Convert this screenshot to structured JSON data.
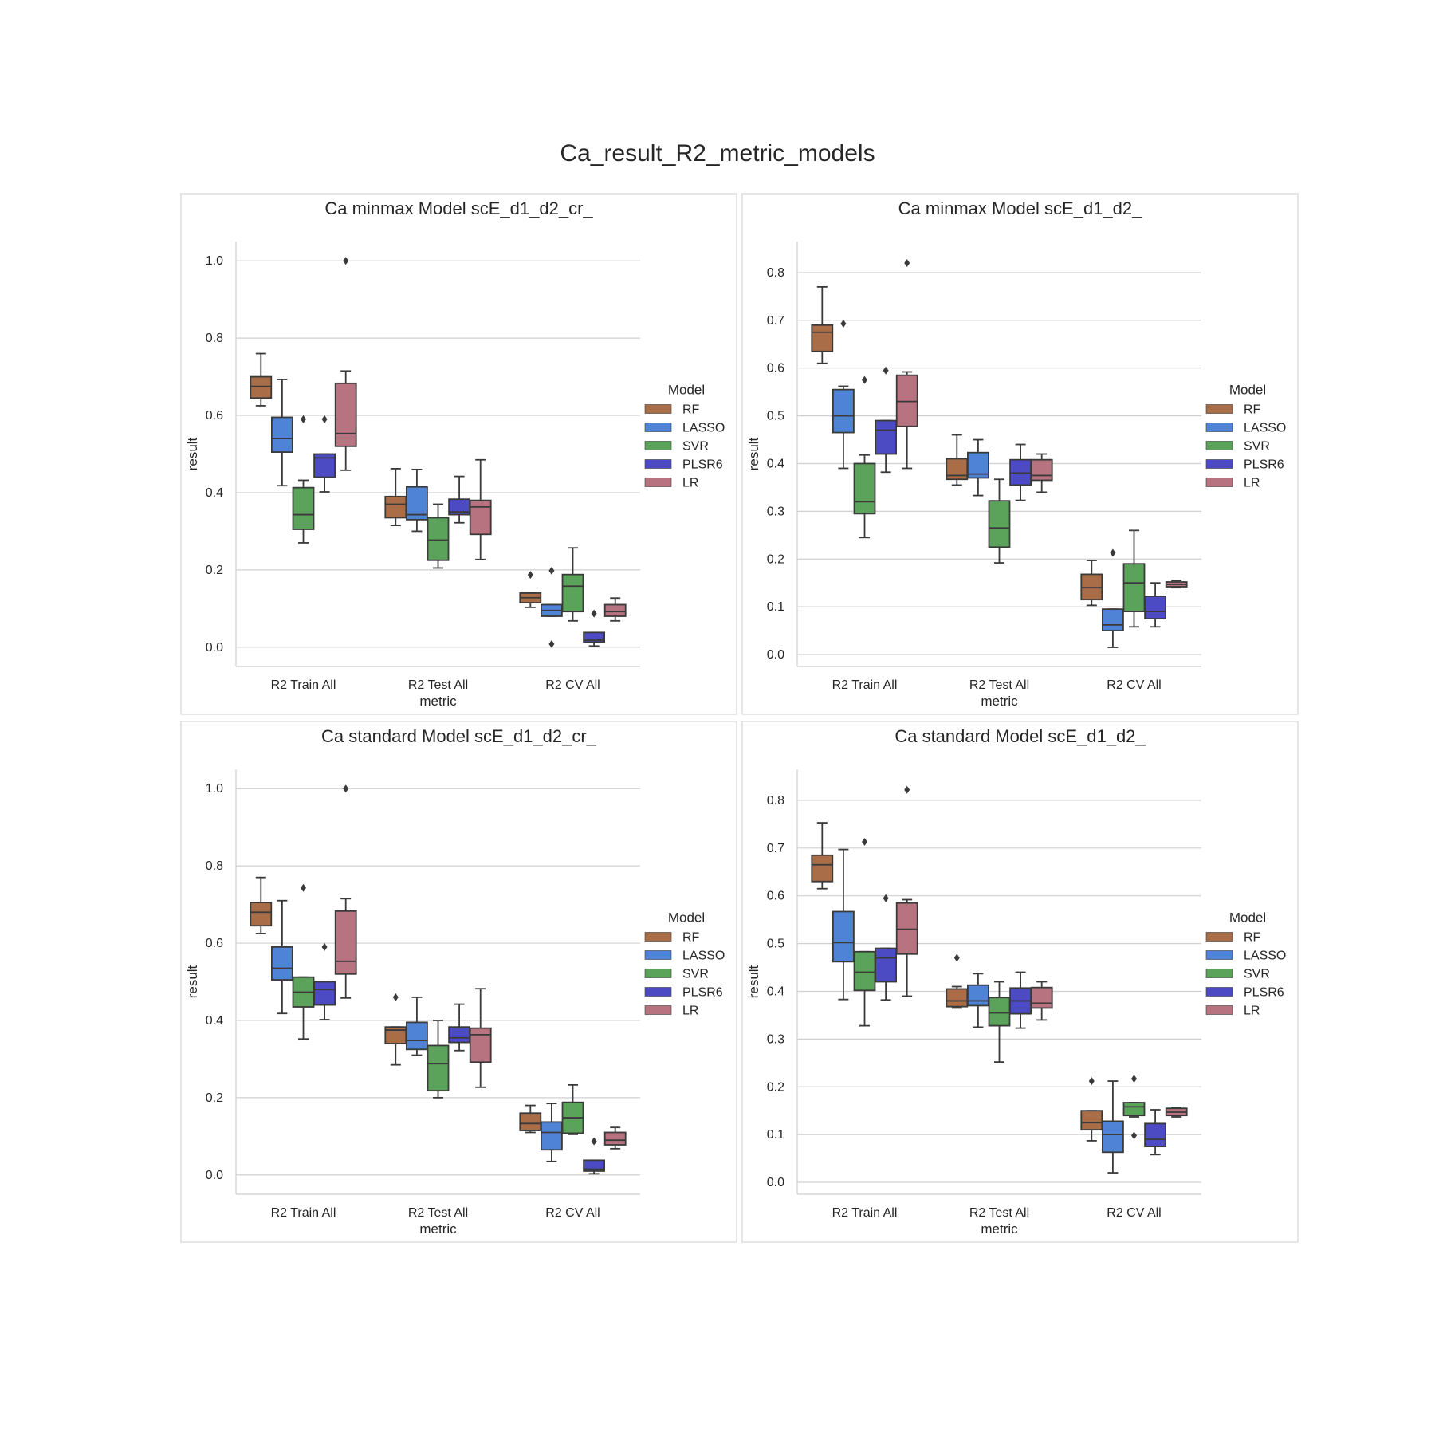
{
  "figure": {
    "title": "Ca_result_R2_metric_models"
  },
  "colors": {
    "RF": "#a96e48",
    "LASSO": "#4f83d6",
    "SVR": "#5ba25b",
    "PLSR6": "#4c4bc4",
    "LR": "#b7737f",
    "edge": "#3a3a3a",
    "grid": "#d0d0d0",
    "frame": "#d6d6d6"
  },
  "chart_data": [
    {
      "type": "box",
      "title": "Ca minmax Model scE_d1_d2_cr_",
      "xlabel": "metric",
      "ylabel": "result",
      "ylim": [
        -0.05,
        1.05
      ],
      "yticks": [
        "0.0",
        "0.2",
        "0.4",
        "0.6",
        "0.8",
        "1.0"
      ],
      "categories": [
        "R2 Train All",
        "R2 Test All",
        "R2 CV All"
      ],
      "legend": {
        "title": "Model",
        "placement": "center-right"
      },
      "grid": true,
      "series": [
        {
          "name": "RF",
          "boxes": [
            {
              "whislo": 0.625,
              "q1": 0.645,
              "med": 0.675,
              "q3": 0.7,
              "whishi": 0.76,
              "fliers": []
            },
            {
              "whislo": 0.315,
              "q1": 0.335,
              "med": 0.37,
              "q3": 0.39,
              "whishi": 0.462,
              "fliers": []
            },
            {
              "whislo": 0.103,
              "q1": 0.115,
              "med": 0.128,
              "q3": 0.14,
              "whishi": 0.14,
              "fliers": [
                0.187
              ]
            }
          ]
        },
        {
          "name": "LASSO",
          "boxes": [
            {
              "whislo": 0.418,
              "q1": 0.505,
              "med": 0.54,
              "q3": 0.595,
              "whishi": 0.693,
              "fliers": []
            },
            {
              "whislo": 0.3,
              "q1": 0.33,
              "med": 0.343,
              "q3": 0.415,
              "whishi": 0.46,
              "fliers": []
            },
            {
              "whislo": 0.08,
              "q1": 0.08,
              "med": 0.095,
              "q3": 0.11,
              "whishi": 0.11,
              "fliers": [
                0.198,
                0.008
              ]
            }
          ]
        },
        {
          "name": "SVR",
          "boxes": [
            {
              "whislo": 0.27,
              "q1": 0.305,
              "med": 0.343,
              "q3": 0.413,
              "whishi": 0.432,
              "fliers": [
                0.59
              ]
            },
            {
              "whislo": 0.205,
              "q1": 0.225,
              "med": 0.277,
              "q3": 0.335,
              "whishi": 0.37,
              "fliers": []
            },
            {
              "whislo": 0.068,
              "q1": 0.092,
              "med": 0.158,
              "q3": 0.188,
              "whishi": 0.257,
              "fliers": []
            }
          ]
        },
        {
          "name": "PLSR6",
          "boxes": [
            {
              "whislo": 0.402,
              "q1": 0.44,
              "med": 0.49,
              "q3": 0.5,
              "whishi": 0.5,
              "fliers": [
                0.59
              ]
            },
            {
              "whislo": 0.322,
              "q1": 0.343,
              "med": 0.35,
              "q3": 0.383,
              "whishi": 0.442,
              "fliers": []
            },
            {
              "whislo": 0.003,
              "q1": 0.013,
              "med": 0.018,
              "q3": 0.038,
              "whishi": 0.038,
              "fliers": [
                0.087
              ]
            }
          ]
        },
        {
          "name": "LR",
          "boxes": [
            {
              "whislo": 0.458,
              "q1": 0.52,
              "med": 0.553,
              "q3": 0.683,
              "whishi": 0.715,
              "fliers": [
                1.0
              ]
            },
            {
              "whislo": 0.227,
              "q1": 0.292,
              "med": 0.363,
              "q3": 0.38,
              "whishi": 0.485,
              "fliers": []
            },
            {
              "whislo": 0.068,
              "q1": 0.08,
              "med": 0.092,
              "q3": 0.11,
              "whishi": 0.127,
              "fliers": []
            }
          ]
        }
      ]
    },
    {
      "type": "box",
      "title": "Ca minmax Model scE_d1_d2_",
      "xlabel": "metric",
      "ylabel": "result",
      "ylim": [
        -0.025,
        0.865
      ],
      "yticks": [
        "0.0",
        "0.1",
        "0.2",
        "0.3",
        "0.4",
        "0.5",
        "0.6",
        "0.7",
        "0.8"
      ],
      "categories": [
        "R2 Train All",
        "R2 Test All",
        "R2 CV All"
      ],
      "legend": {
        "title": "Model",
        "placement": "center-right"
      },
      "grid": true,
      "series": [
        {
          "name": "RF",
          "boxes": [
            {
              "whislo": 0.61,
              "q1": 0.635,
              "med": 0.675,
              "q3": 0.69,
              "whishi": 0.77,
              "fliers": []
            },
            {
              "whislo": 0.355,
              "q1": 0.367,
              "med": 0.375,
              "q3": 0.41,
              "whishi": 0.46,
              "fliers": []
            },
            {
              "whislo": 0.103,
              "q1": 0.115,
              "med": 0.14,
              "q3": 0.168,
              "whishi": 0.197,
              "fliers": []
            }
          ]
        },
        {
          "name": "LASSO",
          "boxes": [
            {
              "whislo": 0.39,
              "q1": 0.465,
              "med": 0.5,
              "q3": 0.555,
              "whishi": 0.562,
              "fliers": [
                0.693
              ]
            },
            {
              "whislo": 0.333,
              "q1": 0.37,
              "med": 0.378,
              "q3": 0.423,
              "whishi": 0.45,
              "fliers": []
            },
            {
              "whislo": 0.015,
              "q1": 0.05,
              "med": 0.062,
              "q3": 0.095,
              "whishi": 0.095,
              "fliers": [
                0.213
              ]
            }
          ]
        },
        {
          "name": "SVR",
          "boxes": [
            {
              "whislo": 0.245,
              "q1": 0.295,
              "med": 0.32,
              "q3": 0.4,
              "whishi": 0.418,
              "fliers": [
                0.575
              ]
            },
            {
              "whislo": 0.192,
              "q1": 0.225,
              "med": 0.265,
              "q3": 0.322,
              "whishi": 0.367,
              "fliers": []
            },
            {
              "whislo": 0.058,
              "q1": 0.09,
              "med": 0.15,
              "q3": 0.19,
              "whishi": 0.26,
              "fliers": []
            }
          ]
        },
        {
          "name": "PLSR6",
          "boxes": [
            {
              "whislo": 0.382,
              "q1": 0.42,
              "med": 0.47,
              "q3": 0.49,
              "whishi": 0.49,
              "fliers": [
                0.595
              ]
            },
            {
              "whislo": 0.323,
              "q1": 0.355,
              "med": 0.38,
              "q3": 0.408,
              "whishi": 0.44,
              "fliers": []
            },
            {
              "whislo": 0.058,
              "q1": 0.075,
              "med": 0.09,
              "q3": 0.122,
              "whishi": 0.15,
              "fliers": []
            }
          ]
        },
        {
          "name": "LR",
          "boxes": [
            {
              "whislo": 0.39,
              "q1": 0.478,
              "med": 0.53,
              "q3": 0.585,
              "whishi": 0.592,
              "fliers": [
                0.82
              ]
            },
            {
              "whislo": 0.34,
              "q1": 0.365,
              "med": 0.375,
              "q3": 0.408,
              "whishi": 0.42,
              "fliers": []
            },
            {
              "whislo": 0.14,
              "q1": 0.142,
              "med": 0.147,
              "q3": 0.152,
              "whishi": 0.155,
              "fliers": []
            }
          ]
        }
      ]
    },
    {
      "type": "box",
      "title": "Ca standard Model scE_d1_d2_cr_",
      "xlabel": "metric",
      "ylabel": "result",
      "ylim": [
        -0.05,
        1.05
      ],
      "yticks": [
        "0.0",
        "0.2",
        "0.4",
        "0.6",
        "0.8",
        "1.0"
      ],
      "categories": [
        "R2 Train All",
        "R2 Test All",
        "R2 CV All"
      ],
      "legend": {
        "title": "Model",
        "placement": "center-right"
      },
      "grid": true,
      "series": [
        {
          "name": "RF",
          "boxes": [
            {
              "whislo": 0.625,
              "q1": 0.645,
              "med": 0.68,
              "q3": 0.705,
              "whishi": 0.77,
              "fliers": []
            },
            {
              "whislo": 0.285,
              "q1": 0.34,
              "med": 0.375,
              "q3": 0.383,
              "whishi": 0.383,
              "fliers": [
                0.46
              ]
            },
            {
              "whislo": 0.11,
              "q1": 0.115,
              "med": 0.133,
              "q3": 0.16,
              "whishi": 0.18,
              "fliers": []
            }
          ]
        },
        {
          "name": "LASSO",
          "boxes": [
            {
              "whislo": 0.418,
              "q1": 0.505,
              "med": 0.535,
              "q3": 0.59,
              "whishi": 0.71,
              "fliers": []
            },
            {
              "whislo": 0.31,
              "q1": 0.325,
              "med": 0.348,
              "q3": 0.395,
              "whishi": 0.46,
              "fliers": []
            },
            {
              "whislo": 0.035,
              "q1": 0.065,
              "med": 0.11,
              "q3": 0.137,
              "whishi": 0.185,
              "fliers": []
            }
          ]
        },
        {
          "name": "SVR",
          "boxes": [
            {
              "whislo": 0.352,
              "q1": 0.435,
              "med": 0.473,
              "q3": 0.512,
              "whishi": 0.512,
              "fliers": [
                0.743
              ]
            },
            {
              "whislo": 0.2,
              "q1": 0.218,
              "med": 0.288,
              "q3": 0.335,
              "whishi": 0.4,
              "fliers": []
            },
            {
              "whislo": 0.105,
              "q1": 0.108,
              "med": 0.148,
              "q3": 0.188,
              "whishi": 0.233,
              "fliers": []
            }
          ]
        },
        {
          "name": "PLSR6",
          "boxes": [
            {
              "whislo": 0.402,
              "q1": 0.44,
              "med": 0.48,
              "q3": 0.5,
              "whishi": 0.5,
              "fliers": [
                0.59
              ]
            },
            {
              "whislo": 0.322,
              "q1": 0.343,
              "med": 0.355,
              "q3": 0.383,
              "whishi": 0.442,
              "fliers": []
            },
            {
              "whislo": 0.003,
              "q1": 0.01,
              "med": 0.015,
              "q3": 0.038,
              "whishi": 0.038,
              "fliers": [
                0.087
              ]
            }
          ]
        },
        {
          "name": "LR",
          "boxes": [
            {
              "whislo": 0.458,
              "q1": 0.52,
              "med": 0.553,
              "q3": 0.683,
              "whishi": 0.715,
              "fliers": [
                1.0
              ]
            },
            {
              "whislo": 0.227,
              "q1": 0.292,
              "med": 0.363,
              "q3": 0.38,
              "whishi": 0.482,
              "fliers": []
            },
            {
              "whislo": 0.068,
              "q1": 0.078,
              "med": 0.09,
              "q3": 0.11,
              "whishi": 0.123,
              "fliers": []
            }
          ]
        }
      ]
    },
    {
      "type": "box",
      "title": "Ca standard Model scE_d1_d2_",
      "xlabel": "metric",
      "ylabel": "result",
      "ylim": [
        -0.025,
        0.865
      ],
      "yticks": [
        "0.0",
        "0.1",
        "0.2",
        "0.3",
        "0.4",
        "0.5",
        "0.6",
        "0.7",
        "0.8"
      ],
      "categories": [
        "R2 Train All",
        "R2 Test All",
        "R2 CV All"
      ],
      "legend": {
        "title": "Model",
        "placement": "center-right"
      },
      "grid": true,
      "series": [
        {
          "name": "RF",
          "boxes": [
            {
              "whislo": 0.615,
              "q1": 0.63,
              "med": 0.665,
              "q3": 0.685,
              "whishi": 0.753,
              "fliers": []
            },
            {
              "whislo": 0.365,
              "q1": 0.368,
              "med": 0.38,
              "q3": 0.405,
              "whishi": 0.41,
              "fliers": [
                0.47
              ]
            },
            {
              "whislo": 0.087,
              "q1": 0.11,
              "med": 0.125,
              "q3": 0.15,
              "whishi": 0.15,
              "fliers": [
                0.212
              ]
            }
          ]
        },
        {
          "name": "LASSO",
          "boxes": [
            {
              "whislo": 0.383,
              "q1": 0.462,
              "med": 0.502,
              "q3": 0.567,
              "whishi": 0.697,
              "fliers": []
            },
            {
              "whislo": 0.325,
              "q1": 0.37,
              "med": 0.38,
              "q3": 0.413,
              "whishi": 0.437,
              "fliers": []
            },
            {
              "whislo": 0.02,
              "q1": 0.063,
              "med": 0.1,
              "q3": 0.128,
              "whishi": 0.212,
              "fliers": []
            }
          ]
        },
        {
          "name": "SVR",
          "boxes": [
            {
              "whislo": 0.328,
              "q1": 0.402,
              "med": 0.44,
              "q3": 0.483,
              "whishi": 0.483,
              "fliers": [
                0.713
              ]
            },
            {
              "whislo": 0.252,
              "q1": 0.328,
              "med": 0.355,
              "q3": 0.387,
              "whishi": 0.42,
              "fliers": []
            },
            {
              "whislo": 0.137,
              "q1": 0.14,
              "med": 0.158,
              "q3": 0.167,
              "whishi": 0.167,
              "fliers": [
                0.217,
                0.098
              ]
            }
          ]
        },
        {
          "name": "PLSR6",
          "boxes": [
            {
              "whislo": 0.382,
              "q1": 0.42,
              "med": 0.47,
              "q3": 0.49,
              "whishi": 0.49,
              "fliers": [
                0.595
              ]
            },
            {
              "whislo": 0.323,
              "q1": 0.353,
              "med": 0.38,
              "q3": 0.407,
              "whishi": 0.44,
              "fliers": []
            },
            {
              "whislo": 0.058,
              "q1": 0.075,
              "med": 0.09,
              "q3": 0.123,
              "whishi": 0.152,
              "fliers": []
            }
          ]
        },
        {
          "name": "LR",
          "boxes": [
            {
              "whislo": 0.39,
              "q1": 0.478,
              "med": 0.53,
              "q3": 0.585,
              "whishi": 0.592,
              "fliers": [
                0.822
              ]
            },
            {
              "whislo": 0.34,
              "q1": 0.365,
              "med": 0.375,
              "q3": 0.408,
              "whishi": 0.42,
              "fliers": []
            },
            {
              "whislo": 0.137,
              "q1": 0.14,
              "med": 0.147,
              "q3": 0.155,
              "whishi": 0.157,
              "fliers": []
            }
          ]
        }
      ]
    }
  ]
}
